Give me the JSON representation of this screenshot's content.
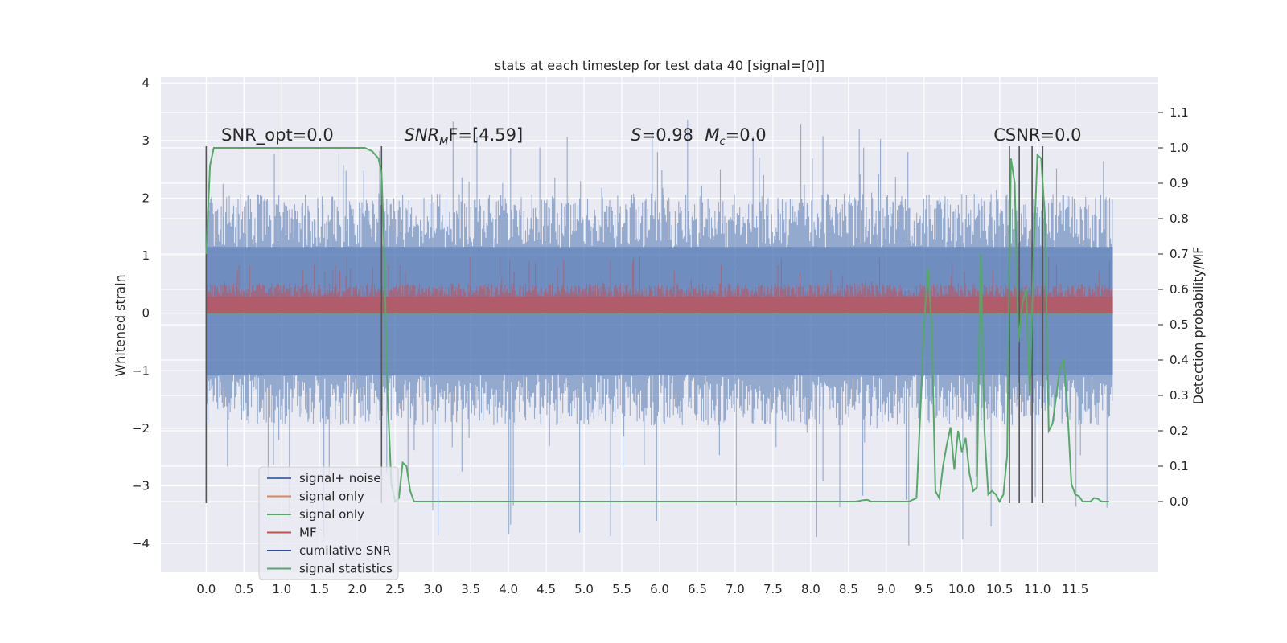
{
  "chart_data": {
    "type": "line",
    "title": "stats at each timestep for test data 40 [signal=[0]]",
    "xlabel": "",
    "ylabel": "Whitened strain",
    "ylabel_right": "Detection probability/MF",
    "xlim": [
      -0.6,
      12.6
    ],
    "ylim": [
      -4.5,
      4.1
    ],
    "ylim_right": [
      -0.2,
      1.2
    ],
    "x_ticks": [
      "0.0",
      "0.5",
      "1.0",
      "1.5",
      "2.0",
      "2.5",
      "3.0",
      "3.5",
      "4.0",
      "4.5",
      "5.0",
      "5.5",
      "6.0",
      "6.5",
      "7.0",
      "7.5",
      "8.0",
      "8.5",
      "9.0",
      "9.5",
      "10.0",
      "10.5",
      "11.0",
      "11.5"
    ],
    "y_ticks": [
      "4",
      "3",
      "2",
      "1",
      "0",
      "−1",
      "−2",
      "−3",
      "−4"
    ],
    "y_ticks_right": [
      "1.1",
      "1.0",
      "0.9",
      "0.8",
      "0.7",
      "0.6",
      "0.5",
      "0.4",
      "0.3",
      "0.2",
      "0.1",
      "0.0"
    ],
    "grid": true,
    "background": "#eaeaf2",
    "annotations": [
      {
        "text": "SNR_opt=0.0",
        "x": 0.2,
        "y": 3.0
      },
      {
        "text": "SNR",
        "sub": "M",
        "suffix": "F=[4.59]",
        "italic": true,
        "x": 2.62,
        "y": 3.0
      },
      {
        "text": "S",
        "suffix": "=0.98",
        "italic": true,
        "x": 5.62,
        "y": 3.0
      },
      {
        "text": "M",
        "sub": "c",
        "suffix": "=0.0",
        "italic": true,
        "x": 6.6,
        "y": 3.0
      },
      {
        "text": "CSNR=0.0",
        "x": 10.42,
        "y": 3.0
      }
    ],
    "series": [
      {
        "name": "signal+ noise",
        "color": "#4c72b0",
        "x_range": [
          0.0,
          12.0
        ],
        "envelope": {
          "upper_base": 1.6,
          "upper_peak": 3.4,
          "lower_base": -1.5,
          "lower_peak": -4.1
        }
      },
      {
        "name": "signal only",
        "color": "#dd8452",
        "x_range": [
          0.0,
          12.0
        ],
        "y": 0.0
      },
      {
        "name": "signal only",
        "color": "#55a868",
        "x_range": [
          0.0,
          12.0
        ],
        "y": 0.0
      },
      {
        "name": "MF",
        "color": "#c44e52",
        "x_range": [
          0.0,
          12.0
        ],
        "envelope": {
          "upper_base": 0.4,
          "upper_peak": 1.0,
          "lower_base": 0.0,
          "lower_peak": 0.0
        }
      },
      {
        "name": "cumilative SNR",
        "color": "#2f4b9c"
      },
      {
        "name": "signal statistics",
        "color": "#55a868",
        "axis": "right",
        "x": [
          0.0,
          0.05,
          0.1,
          0.2,
          0.5,
          1.0,
          1.5,
          2.0,
          2.1,
          2.2,
          2.28,
          2.32,
          2.35,
          2.4,
          2.45,
          2.5,
          2.55,
          2.6,
          2.65,
          2.7,
          2.75,
          2.8,
          3.0,
          4.0,
          5.0,
          6.0,
          7.0,
          8.0,
          8.6,
          8.7,
          8.75,
          8.8,
          9.0,
          9.3,
          9.4,
          9.45,
          9.5,
          9.55,
          9.6,
          9.65,
          9.7,
          9.75,
          9.8,
          9.85,
          9.9,
          9.95,
          10.0,
          10.05,
          10.1,
          10.15,
          10.2,
          10.25,
          10.3,
          10.35,
          10.4,
          10.45,
          10.5,
          10.55,
          10.6,
          10.65,
          10.7,
          10.75,
          10.8,
          10.85,
          10.9,
          10.95,
          11.0,
          11.05,
          11.1,
          11.15,
          11.2,
          11.25,
          11.3,
          11.35,
          11.4,
          11.45,
          11.5,
          11.55,
          11.6,
          11.65,
          11.7,
          11.75,
          11.8,
          11.85,
          11.9,
          11.95
        ],
        "y": [
          0.7,
          0.95,
          1.0,
          1.0,
          1.0,
          1.0,
          1.0,
          1.0,
          1.0,
          0.99,
          0.97,
          0.93,
          0.75,
          0.3,
          0.05,
          0.0,
          0.01,
          0.11,
          0.1,
          0.03,
          0.0,
          0.0,
          0.0,
          0.0,
          0.0,
          0.0,
          0.0,
          0.0,
          0.0,
          0.004,
          0.005,
          0.0,
          0.0,
          0.0,
          0.01,
          0.25,
          0.5,
          0.66,
          0.5,
          0.03,
          0.01,
          0.1,
          0.16,
          0.21,
          0.09,
          0.2,
          0.14,
          0.18,
          0.08,
          0.03,
          0.04,
          0.7,
          0.2,
          0.02,
          0.03,
          0.02,
          0.0,
          0.02,
          0.13,
          0.97,
          0.9,
          0.45,
          0.56,
          0.6,
          0.3,
          0.7,
          0.98,
          0.97,
          0.8,
          0.2,
          0.22,
          0.3,
          0.38,
          0.4,
          0.25,
          0.05,
          0.02,
          0.015,
          0.0,
          0.0,
          0.0,
          0.01,
          0.008,
          0.0,
          0.0,
          0.0
        ]
      }
    ],
    "vlines": [
      0.0,
      2.32,
      10.63,
      10.76,
      10.93,
      11.07
    ],
    "vline_range": [
      -3.3,
      2.9
    ],
    "legend": {
      "position": "lower-left",
      "entries": [
        {
          "label": "signal+ noise",
          "color": "#4c72b0"
        },
        {
          "label": "signal only",
          "color": "#dd8452"
        },
        {
          "label": "signal only",
          "color": "#55a868"
        },
        {
          "label": "MF",
          "color": "#c44e52"
        },
        {
          "label": "cumilative SNR",
          "color": "#2f4b9c"
        },
        {
          "label": "signal statistics",
          "color": "#55a868"
        }
      ]
    }
  }
}
